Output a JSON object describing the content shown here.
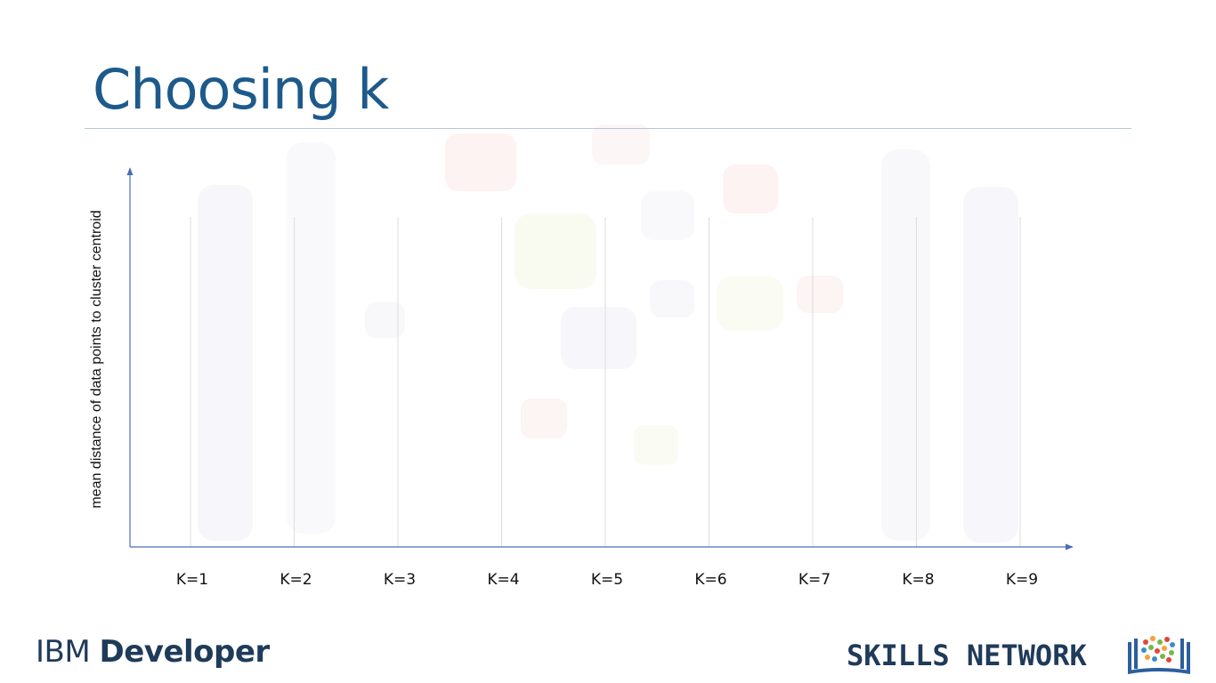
{
  "title": "Choosing k",
  "chart_data": {
    "type": "line",
    "title": "",
    "xlabel": "",
    "ylabel": "mean distance of data points to cluster centroid",
    "categories": [
      "K=1",
      "K=2",
      "K=3",
      "K=4",
      "K=5",
      "K=6",
      "K=7",
      "K=8",
      "K=9"
    ],
    "series": [],
    "grid": "vertical",
    "axis_color": "#4a6fb5",
    "grid_color": "#dcdcdc"
  },
  "footer": {
    "ibm_prefix": "IBM",
    "ibm_product": "Developer",
    "skills_network": "SKILLS NETWORK"
  },
  "colors": {
    "title": "#1d5a8c",
    "footer_text": "#1f3b5a"
  }
}
